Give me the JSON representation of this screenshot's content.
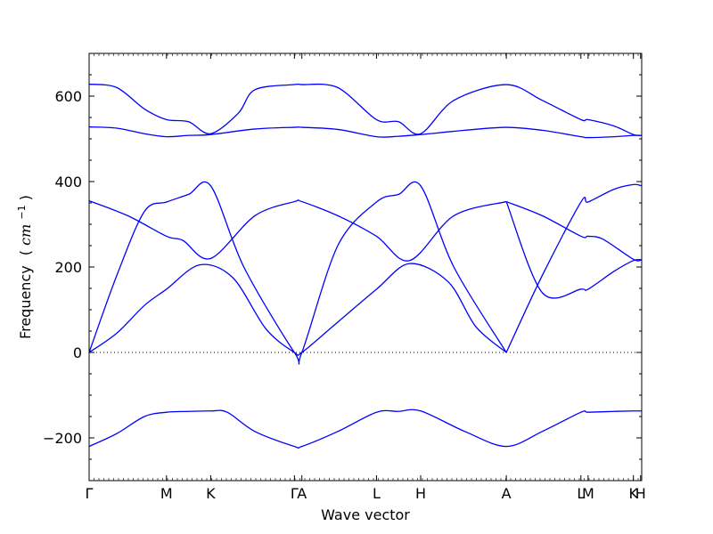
{
  "chart_data": {
    "type": "line",
    "xlabel": "Wave vector",
    "ylabel": {
      "text": "Frequency",
      "unit_open": "(",
      "unit_base": "cm",
      "unit_exp": "−1",
      "unit_close": ")"
    },
    "ylim": [
      -300,
      700
    ],
    "y_ticks": [
      {
        "value": 600,
        "label": "600"
      },
      {
        "value": 400,
        "label": "400"
      },
      {
        "value": 200,
        "label": "200"
      },
      {
        "value": 0,
        "label": "0"
      },
      {
        "value": -200,
        "label": "−200"
      }
    ],
    "xlim": [
      0,
      1
    ],
    "x_ticks": [
      {
        "value": 0.0,
        "label": "Γ"
      },
      {
        "value": 0.14,
        "label": "M"
      },
      {
        "value": 0.22,
        "label": "K"
      },
      {
        "value": 0.3715,
        "label": "Γ"
      },
      {
        "value": 0.385,
        "label": "A"
      },
      {
        "value": 0.52,
        "label": "L"
      },
      {
        "value": 0.6,
        "label": "H"
      },
      {
        "value": 0.755,
        "label": "A"
      },
      {
        "value": 0.89,
        "label": "L"
      },
      {
        "value": 0.903,
        "label": "M"
      },
      {
        "value": 0.985,
        "label": "K"
      },
      {
        "value": 0.998,
        "label": "H"
      }
    ],
    "grid": false,
    "zero_line": true,
    "line_color": "#0000ff",
    "series": [
      {
        "x": [
          0,
          0.05,
          0.1,
          0.14,
          0.18,
          0.22,
          0.25,
          0.3,
          0.3715,
          0.385,
          0.45,
          0.52,
          0.56,
          0.6,
          0.68,
          0.755,
          0.82,
          0.89,
          0.903,
          0.95,
          0.985,
          1.0
        ],
        "y": [
          -220,
          -190,
          -150,
          -140,
          -138,
          -137,
          -140,
          -185,
          -220,
          -220,
          -185,
          -140,
          -138,
          -137,
          -185,
          -220,
          -185,
          -140,
          -140,
          -138,
          -137,
          -137
        ]
      },
      {
        "x": [
          0,
          0.05,
          0.1,
          0.14,
          0.2,
          0.26,
          0.32,
          0.3715,
          0.385,
          0.44,
          0.52,
          0.58,
          0.65,
          0.7,
          0.755
        ],
        "y": [
          0,
          45,
          110,
          148,
          205,
          175,
          55,
          0,
          0,
          60,
          148,
          208,
          165,
          60,
          0
        ]
      },
      {
        "x": [
          0,
          0.05,
          0.1,
          0.14,
          0.18,
          0.22,
          0.28,
          0.3715,
          0.385,
          0.45,
          0.52,
          0.56,
          0.6,
          0.66,
          0.755
        ],
        "y": [
          0,
          180,
          330,
          352,
          370,
          390,
          200,
          0,
          0,
          250,
          352,
          370,
          390,
          200,
          0
        ]
      },
      {
        "x": [
          0,
          0.07,
          0.14,
          0.17,
          0.22,
          0.3,
          0.3715,
          0.385,
          0.45,
          0.52,
          0.58,
          0.66,
          0.755
        ],
        "y": [
          355,
          320,
          272,
          262,
          220,
          320,
          353,
          353,
          320,
          272,
          215,
          320,
          353
        ]
      },
      {
        "x": [
          0.755,
          0.82,
          0.89,
          0.903,
          0.95,
          0.985,
          1.0
        ],
        "y": [
          353,
          140,
          148,
          148,
          190,
          215,
          217
        ]
      },
      {
        "x": [
          0.755,
          0.82,
          0.89,
          0.903,
          0.95,
          0.985,
          1.0
        ],
        "y": [
          0,
          180,
          352,
          352,
          382,
          393,
          390
        ]
      },
      {
        "x": [
          0.755,
          0.82,
          0.89,
          0.903,
          0.93,
          0.985,
          1.0
        ],
        "y": [
          353,
          320,
          272,
          272,
          265,
          218,
          217
        ]
      },
      {
        "x": [
          0,
          0.05,
          0.1,
          0.14,
          0.18,
          0.22,
          0.3,
          0.3715,
          0.385,
          0.45,
          0.52,
          0.56,
          0.6,
          0.68,
          0.755,
          0.82,
          0.89,
          0.903,
          0.95,
          0.985,
          1.0
        ],
        "y": [
          528,
          525,
          512,
          505,
          508,
          510,
          523,
          527,
          527,
          522,
          505,
          506,
          510,
          520,
          527,
          520,
          505,
          503,
          505,
          508,
          508
        ]
      },
      {
        "x": [
          0,
          0.05,
          0.1,
          0.14,
          0.18,
          0.22,
          0.27,
          0.3,
          0.3715,
          0.385,
          0.45,
          0.52,
          0.56,
          0.6,
          0.66,
          0.755,
          0.82,
          0.89,
          0.903,
          0.95,
          0.985,
          1.0
        ],
        "y": [
          628,
          620,
          570,
          545,
          540,
          512,
          560,
          615,
          627,
          627,
          620,
          545,
          540,
          512,
          590,
          627,
          590,
          545,
          545,
          530,
          510,
          508
        ]
      }
    ]
  }
}
